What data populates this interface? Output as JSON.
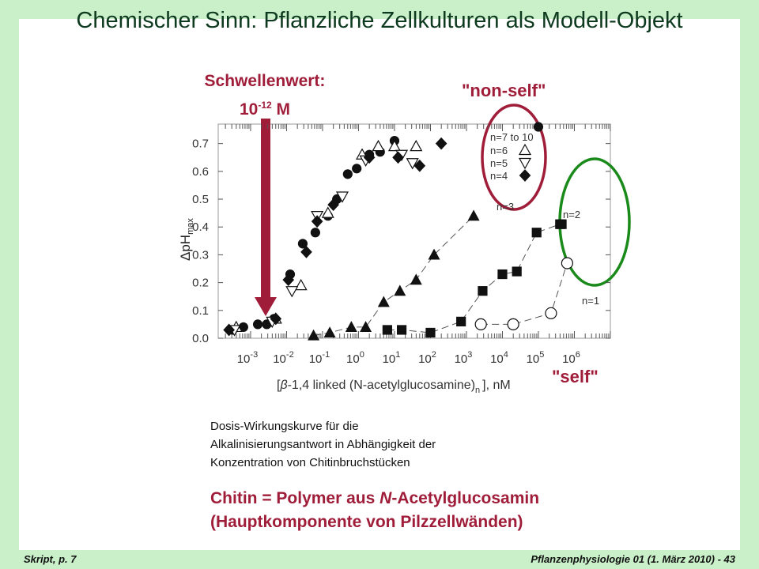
{
  "slide": {
    "title": "Chemischer Sinn: Pflanzliche Zellkulturen als Modell-Objekt",
    "threshold_line1": "Schwellenwert:",
    "threshold_base": "10",
    "threshold_exp": "-12",
    "threshold_unit": "M",
    "nonself_label": "\"non-self\"",
    "self_label": "\"self\"",
    "caption_lines": [
      "Dosis-Wirkungskurve für die",
      "Alkalinisierungsantwort in Abhängigkeit der",
      "Konzentration von Chitinbruchstücken"
    ],
    "chitin_prefix": "Chitin = Polymer aus ",
    "chitin_italic": "N",
    "chitin_suffix": "-Acetylglucosamin",
    "chitin_line2": "(Hauptkomponente von Pilzzellwänden)",
    "footer_left": "Skript, p. 7",
    "footer_right": "Pflanzenphysiologie 01 (1. März 2010) - 43",
    "colors": {
      "background": "#c9f0c9",
      "title": "#0e3a1f",
      "accent_red": "#a01d3a",
      "accent_green": "#1a8a1a"
    }
  },
  "chart_data": {
    "type": "scatter",
    "xscale": "log",
    "xlim_exp": [
      -3.9,
      7.0
    ],
    "ylim": [
      0,
      0.77
    ],
    "xticks_exp": [
      -3,
      -2,
      -1,
      0,
      1,
      2,
      3,
      4,
      5,
      6
    ],
    "yticks": [
      "0.0",
      "0.1",
      "0.2",
      "0.3",
      "0.4",
      "0.5",
      "0.6",
      "0.7"
    ],
    "ylabel_main": "ΔpH",
    "ylabel_sub": "max",
    "xlabel_pre": "[",
    "xlabel_beta": "β",
    "xlabel_mid": "-1,4 linked (N-acetylglucosamine)",
    "xlabel_sub": "n",
    "xlabel_post": "], nM",
    "tick_base": "10",
    "series": [
      {
        "name": "n=7 to 10",
        "marker": "circle-filled",
        "x_exp": [
          -3.5,
          -3.2,
          -2.8,
          -2.55,
          -2.35,
          -1.9,
          -1.55,
          -1.2,
          -0.85,
          -0.6,
          -0.3,
          -0.05,
          0.3,
          0.6,
          1.0,
          5.0
        ],
        "y": [
          0.03,
          0.04,
          0.05,
          0.05,
          0.07,
          0.23,
          0.34,
          0.38,
          0.44,
          0.5,
          0.59,
          0.61,
          0.66,
          0.67,
          0.71,
          0.76
        ]
      },
      {
        "name": "n=6",
        "marker": "triangle-up-open",
        "x_exp": [
          -3.4,
          -2.3,
          -1.6,
          -0.85,
          0.1,
          0.55,
          1.0,
          1.6
        ],
        "y": [
          0.04,
          0.07,
          0.19,
          0.45,
          0.66,
          0.69,
          0.69,
          0.69
        ]
      },
      {
        "name": "n=5",
        "marker": "triangle-down-open",
        "x_exp": [
          -3.45,
          -2.4,
          -1.85,
          -1.15,
          -0.45,
          0.2,
          1.2,
          1.5
        ],
        "y": [
          0.03,
          0.06,
          0.17,
          0.44,
          0.51,
          0.64,
          0.66,
          0.63
        ]
      },
      {
        "name": "n=4",
        "marker": "diamond-filled",
        "x_exp": [
          -3.6,
          -2.3,
          -1.95,
          -1.45,
          -1.15,
          -0.7,
          0.3,
          1.1,
          1.7,
          2.3
        ],
        "y": [
          0.03,
          0.07,
          0.21,
          0.31,
          0.42,
          0.48,
          0.65,
          0.65,
          0.62,
          0.7
        ]
      },
      {
        "name": "n=3",
        "marker": "triangle-up-filled",
        "curve_label": "n=3",
        "x_exp": [
          -1.25,
          -0.8,
          -0.2,
          0.2,
          0.7,
          1.15,
          1.6,
          2.1,
          3.2
        ],
        "y": [
          0.01,
          0.02,
          0.04,
          0.04,
          0.13,
          0.17,
          0.21,
          0.3,
          0.44
        ]
      },
      {
        "name": "n=2",
        "marker": "square-filled",
        "curve_label": "n=2",
        "x_exp": [
          0.8,
          1.2,
          2.0,
          2.85,
          3.45,
          4.0,
          4.4,
          4.95,
          5.6,
          5.65
        ],
        "y": [
          0.03,
          0.03,
          0.02,
          0.06,
          0.17,
          0.23,
          0.24,
          0.38,
          0.41,
          0.41
        ]
      },
      {
        "name": "n=1",
        "marker": "circle-open",
        "curve_label": "n=1",
        "x_exp": [
          3.4,
          4.3,
          5.35,
          5.8
        ],
        "y": [
          0.05,
          0.05,
          0.09,
          0.27
        ]
      }
    ]
  }
}
